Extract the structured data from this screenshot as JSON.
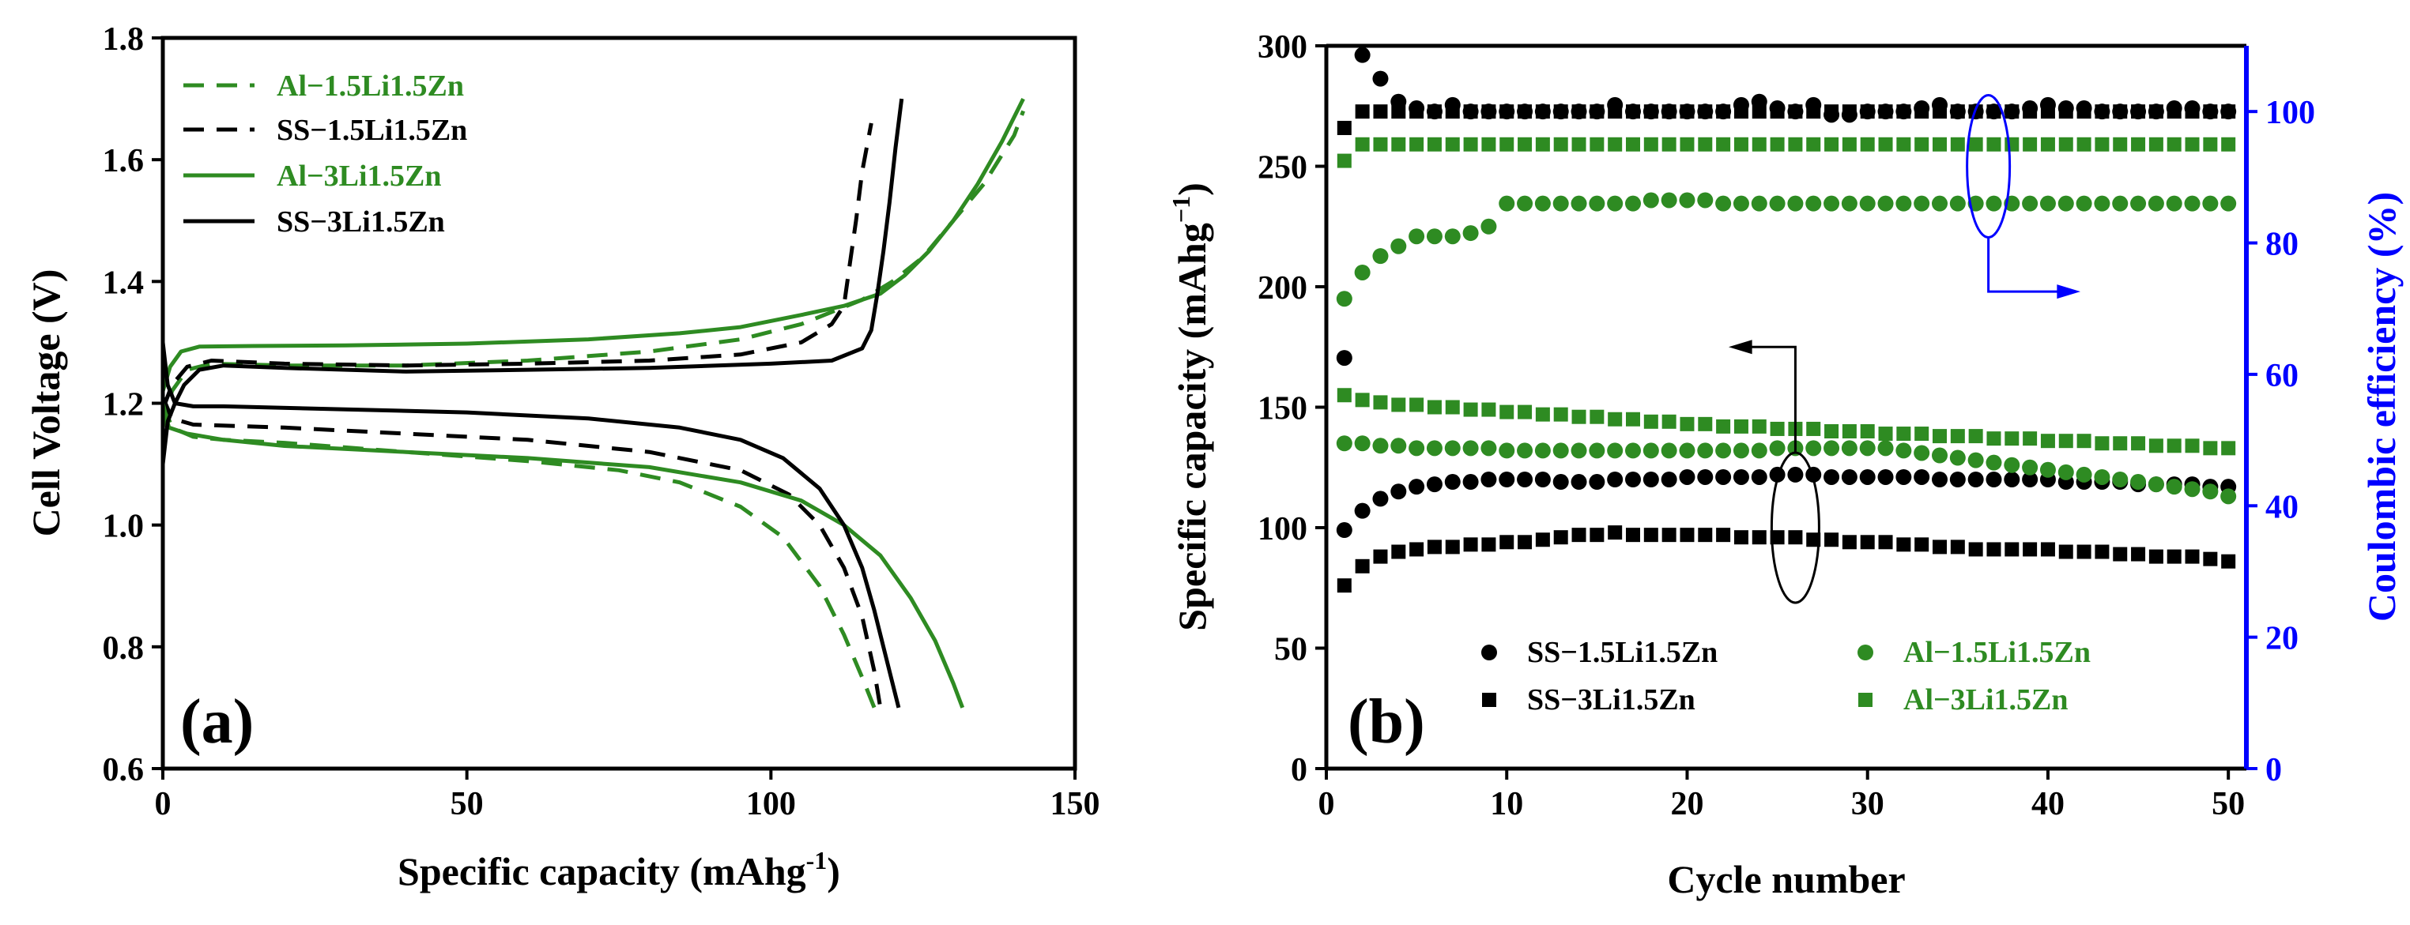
{
  "colors": {
    "green": "#2e8b22",
    "black": "#000000",
    "blue": "#0000ff"
  },
  "chart_data": [
    {
      "panel_label": "(a)",
      "type": "line",
      "xlabel_main": "Specific capacity (mAhg",
      "xlabel_sup": "-1",
      "xlabel_end": ")",
      "ylabel": "Cell Voltage (V)",
      "xlim": [
        0,
        150
      ],
      "ylim": [
        0.6,
        1.8
      ],
      "xticks": [
        "0",
        "50",
        "100",
        "150"
      ],
      "yticks": [
        "0.6",
        "0.8",
        "1.0",
        "1.2",
        "1.4",
        "1.6",
        "1.8"
      ],
      "legend_position": "top-left",
      "series": [
        {
          "name": "Al−1.5Li1.5Zn",
          "color": "#2e8b22",
          "dash": true,
          "charge": [
            [
              0,
              1.16
            ],
            [
              1.5,
              1.22
            ],
            [
              4,
              1.255
            ],
            [
              8,
              1.265
            ],
            [
              20,
              1.262
            ],
            [
              40,
              1.262
            ],
            [
              60,
              1.27
            ],
            [
              80,
              1.285
            ],
            [
              95,
              1.305
            ],
            [
              105,
              1.33
            ],
            [
              110,
              1.35
            ],
            [
              115,
              1.37
            ],
            [
              120,
              1.4
            ],
            [
              125,
              1.44
            ],
            [
              130,
              1.5
            ],
            [
              135,
              1.56
            ],
            [
              140,
              1.64
            ],
            [
              141.5,
              1.68
            ]
          ],
          "discharge": [
            [
              0,
              1.2
            ],
            [
              1.5,
              1.16
            ],
            [
              5,
              1.145
            ],
            [
              10,
              1.14
            ],
            [
              20,
              1.135
            ],
            [
              40,
              1.12
            ],
            [
              60,
              1.105
            ],
            [
              75,
              1.09
            ],
            [
              85,
              1.07
            ],
            [
              95,
              1.03
            ],
            [
              102,
              0.98
            ],
            [
              108,
              0.9
            ],
            [
              112,
              0.82
            ],
            [
              115,
              0.75
            ],
            [
              117,
              0.7
            ]
          ]
        },
        {
          "name": "SS−1.5Li1.5Zn",
          "color": "#000000",
          "dash": true,
          "charge": [
            [
              0,
              1.19
            ],
            [
              1.5,
              1.23
            ],
            [
              4,
              1.26
            ],
            [
              8,
              1.27
            ],
            [
              20,
              1.265
            ],
            [
              40,
              1.262
            ],
            [
              60,
              1.265
            ],
            [
              80,
              1.27
            ],
            [
              95,
              1.28
            ],
            [
              105,
              1.3
            ],
            [
              110,
              1.33
            ],
            [
              112,
              1.36
            ],
            [
              113,
              1.43
            ],
            [
              114,
              1.5
            ],
            [
              115,
              1.58
            ],
            [
              116.5,
              1.66
            ]
          ],
          "discharge": [
            [
              0,
              1.21
            ],
            [
              1.5,
              1.175
            ],
            [
              5,
              1.165
            ],
            [
              20,
              1.16
            ],
            [
              40,
              1.15
            ],
            [
              60,
              1.14
            ],
            [
              80,
              1.12
            ],
            [
              95,
              1.09
            ],
            [
              103,
              1.05
            ],
            [
              108,
              1.0
            ],
            [
              112,
              0.93
            ],
            [
              115,
              0.85
            ],
            [
              117,
              0.76
            ],
            [
              118,
              0.7
            ]
          ]
        },
        {
          "name": "Al−3Li1.5Zn",
          "color": "#2e8b22",
          "dash": false,
          "charge": [
            [
              0,
              1.22
            ],
            [
              1.2,
              1.26
            ],
            [
              3,
              1.285
            ],
            [
              6,
              1.293
            ],
            [
              15,
              1.294
            ],
            [
              30,
              1.295
            ],
            [
              50,
              1.298
            ],
            [
              70,
              1.305
            ],
            [
              85,
              1.315
            ],
            [
              95,
              1.325
            ],
            [
              105,
              1.345
            ],
            [
              112,
              1.36
            ],
            [
              118,
              1.38
            ],
            [
              122,
              1.41
            ],
            [
              126,
              1.45
            ],
            [
              130,
              1.5
            ],
            [
              134,
              1.56
            ],
            [
              138,
              1.63
            ],
            [
              141.5,
              1.7
            ]
          ],
          "discharge": [
            [
              0,
              1.2
            ],
            [
              1,
              1.16
            ],
            [
              4,
              1.15
            ],
            [
              10,
              1.14
            ],
            [
              20,
              1.13
            ],
            [
              40,
              1.12
            ],
            [
              60,
              1.11
            ],
            [
              80,
              1.095
            ],
            [
              95,
              1.07
            ],
            [
              105,
              1.04
            ],
            [
              112,
              1.0
            ],
            [
              118,
              0.95
            ],
            [
              123,
              0.88
            ],
            [
              127,
              0.81
            ],
            [
              130,
              0.74
            ],
            [
              131.5,
              0.7
            ]
          ]
        },
        {
          "name": "SS−3Li1.5Zn",
          "color": "#000000",
          "dash": false,
          "charge": [
            [
              0,
              1.3
            ],
            [
              0.8,
              1.23
            ],
            [
              2,
              1.2
            ],
            [
              3.5,
              1.23
            ],
            [
              6,
              1.255
            ],
            [
              10,
              1.262
            ],
            [
              20,
              1.258
            ],
            [
              40,
              1.252
            ],
            [
              60,
              1.255
            ],
            [
              80,
              1.258
            ],
            [
              100,
              1.265
            ],
            [
              110,
              1.27
            ],
            [
              115,
              1.29
            ],
            [
              116.5,
              1.32
            ],
            [
              117.5,
              1.38
            ],
            [
              118.5,
              1.45
            ],
            [
              119.5,
              1.53
            ],
            [
              120.5,
              1.62
            ],
            [
              121.5,
              1.7
            ]
          ],
          "discharge": [
            [
              0,
              1.1
            ],
            [
              0.8,
              1.17
            ],
            [
              2,
              1.2
            ],
            [
              5,
              1.195
            ],
            [
              10,
              1.195
            ],
            [
              30,
              1.19
            ],
            [
              50,
              1.185
            ],
            [
              70,
              1.175
            ],
            [
              85,
              1.16
            ],
            [
              95,
              1.14
            ],
            [
              102,
              1.11
            ],
            [
              108,
              1.06
            ],
            [
              112,
              1.0
            ],
            [
              115,
              0.93
            ],
            [
              117,
              0.86
            ],
            [
              119,
              0.78
            ],
            [
              121,
              0.7
            ]
          ]
        }
      ]
    },
    {
      "panel_label": "(b)",
      "type": "scatter",
      "xlabel": "Cycle number",
      "ylabel_main": "Specific capacity (mAhg",
      "ylabel_sup": "−1",
      "ylabel_end": ")",
      "y2label": "Coulombic efficiency (%)",
      "xlim": [
        0,
        51
      ],
      "ylim": [
        0,
        300
      ],
      "y2lim": [
        0,
        110
      ],
      "xticks": [
        "0",
        "10",
        "20",
        "30",
        "40",
        "50"
      ],
      "yticks": [
        "0",
        "50",
        "100",
        "150",
        "200",
        "250",
        "300"
      ],
      "y2ticks": [
        "0",
        "20",
        "40",
        "60",
        "80",
        "100"
      ],
      "legend_position": "bottom",
      "annotations": [
        {
          "points_to": "left axis (capacity)",
          "ellipse_center": [
            26,
            100
          ]
        },
        {
          "points_to": "right axis (efficiency)",
          "ellipse_center": [
            36.7,
            250
          ]
        }
      ],
      "series": [
        {
          "name": "SS−1.5Li1.5Zn",
          "color": "#000000",
          "marker": "circle",
          "capacity": [
            99,
            107,
            112,
            115,
            117,
            118,
            119,
            119,
            120,
            120,
            120,
            120,
            119,
            119,
            119,
            120,
            120,
            120,
            120,
            121,
            121,
            121,
            121,
            121,
            122,
            122,
            122,
            121,
            121,
            121,
            121,
            121,
            121,
            120,
            120,
            120,
            120,
            120,
            120,
            120,
            119,
            119,
            119,
            119,
            118,
            118,
            118,
            118,
            117,
            117
          ],
          "efficiency": [
            62.5,
            108.6,
            105,
            101.5,
            100.5,
            100,
            101,
            100,
            100,
            100,
            100,
            100,
            100,
            100,
            100,
            101,
            100,
            100,
            100,
            100,
            100,
            100,
            101,
            101.5,
            100.5,
            100,
            101,
            99.5,
            99.5,
            100,
            100,
            100,
            100.5,
            101,
            100,
            100,
            100,
            100,
            100.5,
            101,
            100.5,
            100.5,
            100,
            100,
            100,
            100,
            100.5,
            100.5,
            100,
            100
          ]
        },
        {
          "name": "SS−3Li1.5Zn",
          "color": "#000000",
          "marker": "square",
          "capacity": [
            76,
            84,
            88,
            90,
            91,
            92,
            92,
            93,
            93,
            94,
            94,
            95,
            96,
            97,
            97,
            98,
            97,
            97,
            97,
            97,
            97,
            97,
            96,
            96,
            96,
            96,
            95,
            95,
            94,
            94,
            94,
            93,
            93,
            92,
            92,
            91,
            91,
            91,
            91,
            91,
            90,
            90,
            90,
            89,
            89,
            88,
            88,
            88,
            87,
            86
          ],
          "efficiency": [
            97.5,
            100,
            100,
            100,
            100,
            100,
            100,
            100,
            100,
            100,
            100,
            100,
            100,
            100,
            100,
            100,
            100,
            100,
            100,
            100,
            100,
            100,
            100,
            100,
            100,
            100,
            100,
            100,
            100,
            100,
            100,
            100,
            100,
            100,
            100,
            100,
            100,
            100,
            100,
            100,
            100,
            100,
            100,
            100,
            100,
            100,
            100,
            100,
            100,
            100
          ]
        },
        {
          "name": "Al−1.5Li1.5Zn",
          "color": "#2e8b22",
          "marker": "circle",
          "capacity": [
            135,
            135,
            134,
            134,
            133,
            133,
            133,
            133,
            133,
            132,
            132,
            132,
            132,
            132,
            132,
            132,
            132,
            132,
            132,
            132,
            132,
            132,
            132,
            132,
            133,
            133,
            133,
            133,
            133,
            133,
            133,
            132,
            131,
            130,
            129,
            128,
            127,
            126,
            125,
            124,
            123,
            122,
            121,
            120,
            119,
            118,
            117,
            116,
            115,
            113
          ],
          "efficiency": [
            71.5,
            75.5,
            78,
            79.5,
            81,
            81,
            81,
            81.5,
            82.5,
            86,
            86,
            86,
            86,
            86,
            86,
            86,
            86,
            86.5,
            86.5,
            86.5,
            86.5,
            86,
            86,
            86,
            86,
            86,
            86,
            86,
            86,
            86,
            86,
            86,
            86,
            86,
            86,
            86,
            86,
            86,
            86,
            86,
            86,
            86,
            86,
            86,
            86,
            86,
            86,
            86,
            86,
            86
          ]
        },
        {
          "name": "Al−3Li1.5Zn",
          "color": "#2e8b22",
          "marker": "square",
          "capacity": [
            155,
            153,
            152,
            151,
            151,
            150,
            150,
            149,
            149,
            148,
            148,
            147,
            147,
            146,
            146,
            145,
            145,
            144,
            144,
            143,
            143,
            142,
            142,
            142,
            141,
            141,
            141,
            140,
            140,
            140,
            139,
            139,
            139,
            138,
            138,
            138,
            137,
            137,
            137,
            136,
            136,
            136,
            135,
            135,
            135,
            134,
            134,
            134,
            133,
            133
          ],
          "efficiency": [
            92.5,
            95,
            95,
            95,
            95,
            95,
            95,
            95,
            95,
            95,
            95,
            95,
            95,
            95,
            95,
            95,
            95,
            95,
            95,
            95,
            95,
            95,
            95,
            95,
            95,
            95,
            95,
            95,
            95,
            95,
            95,
            95,
            95,
            95,
            95,
            95,
            95,
            95,
            95,
            95,
            95,
            95,
            95,
            95,
            95,
            95,
            95,
            95,
            95,
            95
          ]
        }
      ]
    }
  ]
}
